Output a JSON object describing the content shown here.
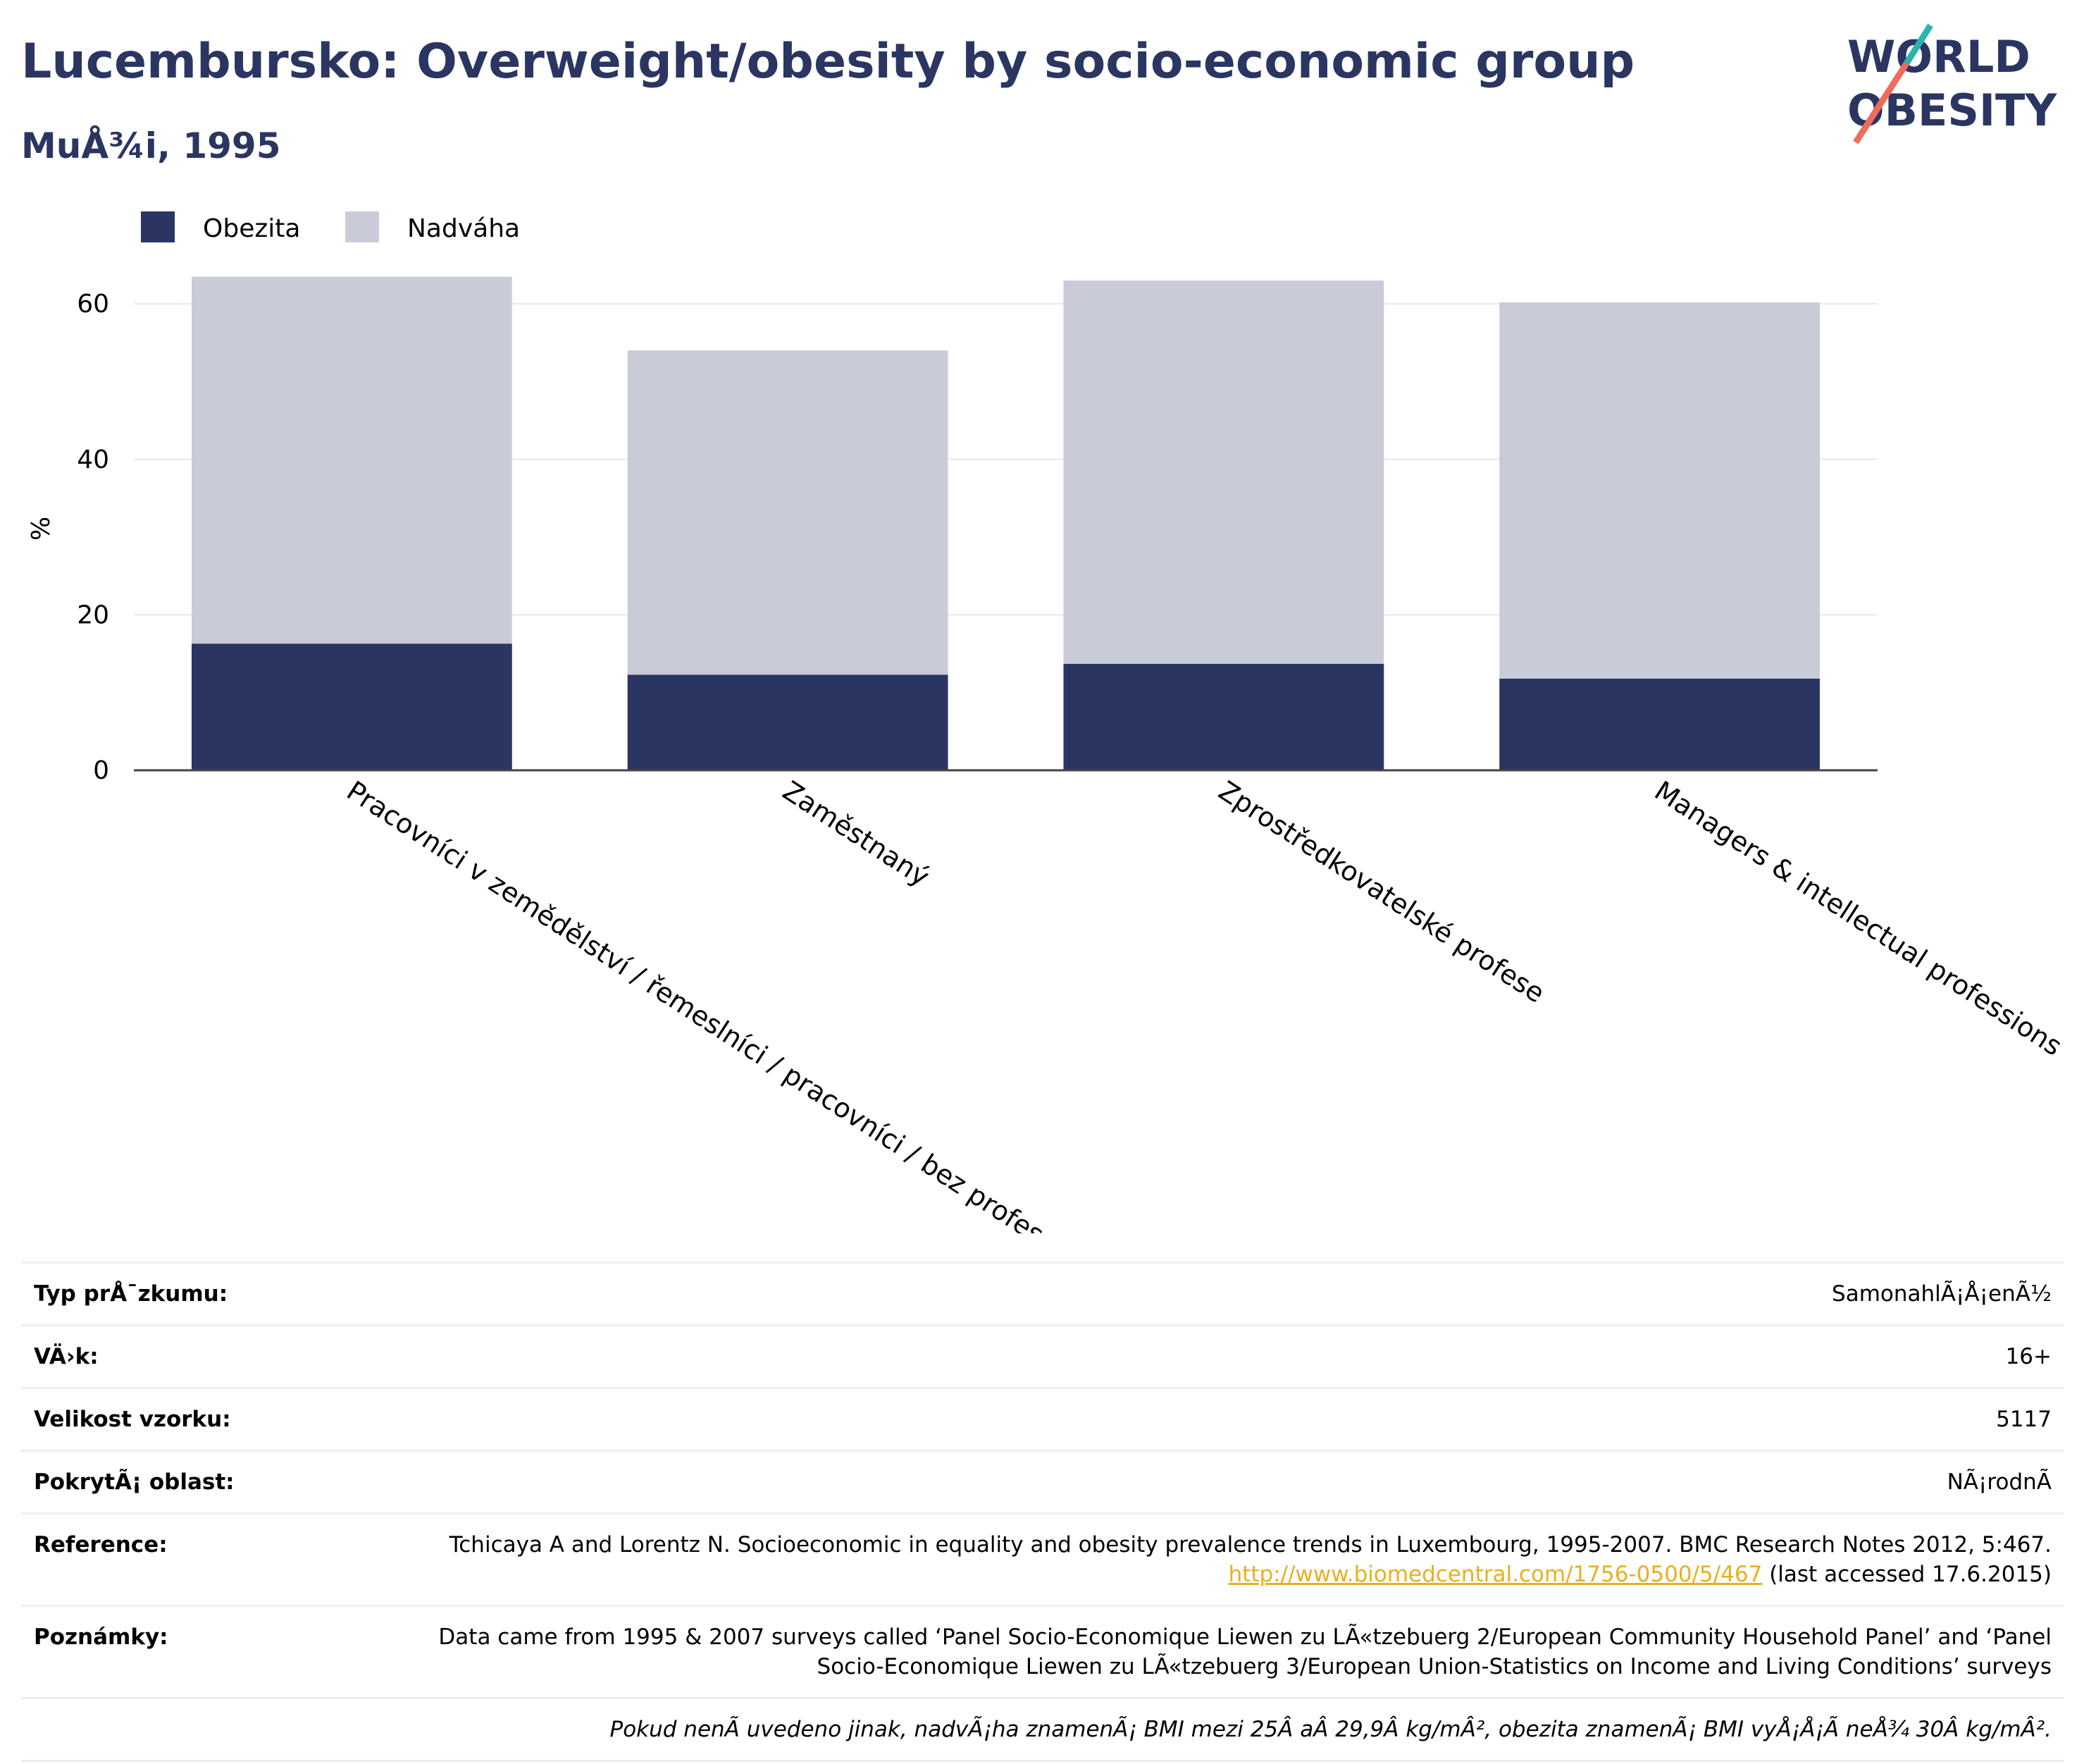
{
  "title": "Lucembursko: Overweight/obesity by socio-economic group",
  "subtitle": "MuÅ¾i, 1995",
  "logo": {
    "line1": "WORLD",
    "line2": "OBESITY"
  },
  "colors": {
    "obesity": "#2b3561",
    "overweight": "#c9ccd8",
    "title": "#2b3561",
    "link": "#e8b020"
  },
  "chart_data": {
    "type": "bar",
    "stacked": true,
    "categories": [
      "Pracovníci v zemědělství / řemeslníci / pracovníci / bez profese",
      "Zaměstnaný",
      "Zprostředkovatelské profese",
      "Managers & intellectual professions"
    ],
    "series": [
      {
        "name": "Obezita",
        "color": "#2b3561",
        "values": [
          16.3,
          12.3,
          13.7,
          11.8
        ]
      },
      {
        "name": "Nadváha",
        "color": "#c9ccd8",
        "values": [
          47.2,
          41.7,
          49.3,
          48.4
        ]
      }
    ],
    "ylabel": "%",
    "ylim": [
      0,
      66
    ],
    "yticks": [
      0,
      20,
      40,
      60
    ],
    "grid": true,
    "legend": "top-left"
  },
  "info": {
    "rows": [
      {
        "label": "Typ prÅ¯zkumu:",
        "value": "SamonahlÃ¡Å¡enÃ½"
      },
      {
        "label": "VÄ›k:",
        "value": "16+"
      },
      {
        "label": "Velikost vzorku:",
        "value": "5117"
      },
      {
        "label": "PokrytÃ¡ oblast:",
        "value": "NÃ¡rodnÃ"
      }
    ],
    "reference_label": "Reference:",
    "reference_text": "Tchicaya A and Lorentz N. Socioeconomic in equality and obesity prevalence trends in Luxembourg, 1995-2007. BMC Research Notes 2012, 5:467.",
    "reference_link": "http://www.biomedcentral.com/1756-0500/5/467",
    "reference_suffix": "(last accessed 17.6.2015)",
    "notes_label": "Poznámky:",
    "notes_text": "Data came from 1995 & 2007 surveys called ‘Panel Socio-Economique Liewen zu LÃ«tzebuerg 2/European Community Household Panel’ and ‘Panel Socio-Economique Liewen zu LÃ«tzebuerg 3/European Union-Statistics on Income and Living Conditions’ surveys",
    "footnote": "Pokud nenÃ uvedeno jinak, nadvÃ¡ha znamenÃ¡ BMI mezi 25Â aÂ 29,9Â kg/mÂ², obezita znamenÃ¡ BMI vyÅ¡Å¡Ã neÅ¾ 30Â kg/mÂ²."
  }
}
